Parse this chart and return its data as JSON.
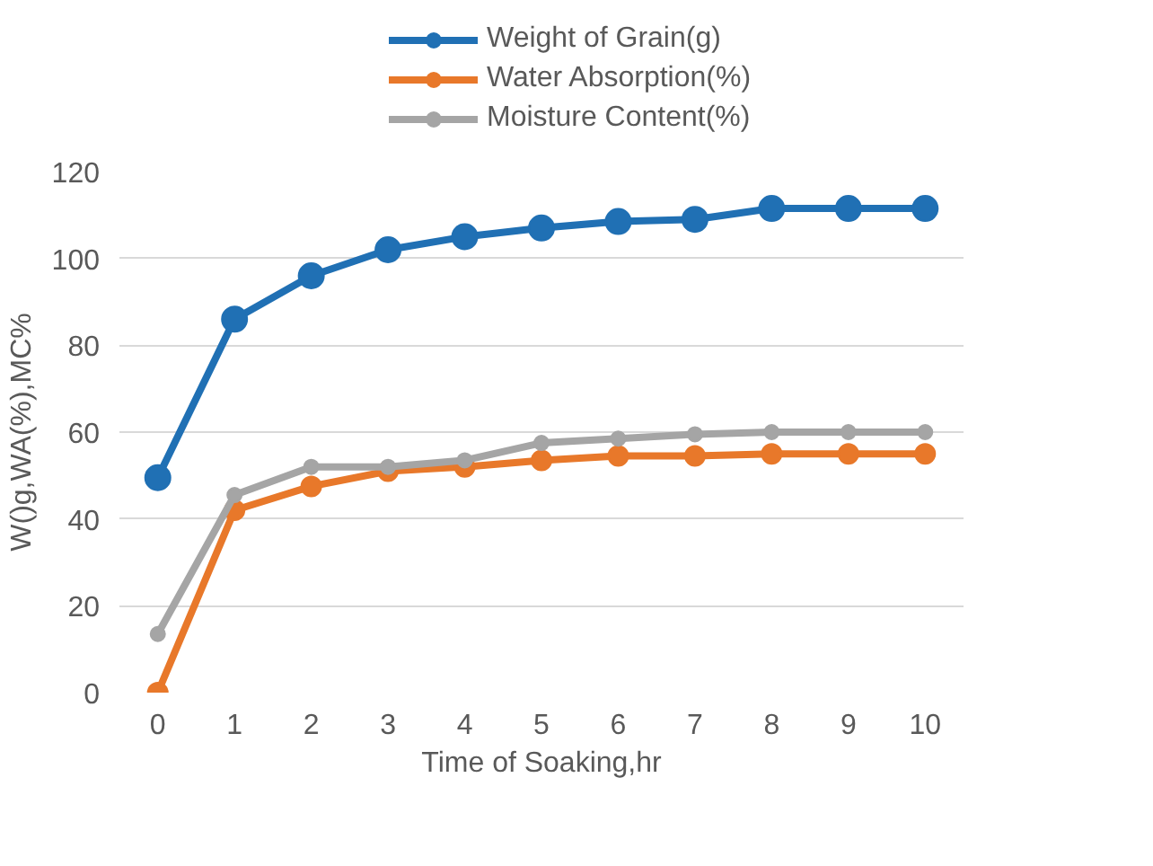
{
  "chart_data": {
    "type": "line",
    "xlabel": "Time of Soaking,hr",
    "ylabel": "W()g,WA(%),MC%",
    "categories": [
      "0",
      "1",
      "2",
      "3",
      "4",
      "5",
      "6",
      "7",
      "8",
      "9",
      "10"
    ],
    "series": [
      {
        "name": "Weight of Grain(g)",
        "color": "#2070b4",
        "values": [
          49.5,
          86,
          96,
          102,
          105,
          107,
          108.5,
          109,
          111.5,
          111.5,
          111.5
        ]
      },
      {
        "name": "Water Absorption(%)",
        "color": "#e8782a",
        "values": [
          0,
          42,
          47.5,
          51,
          52,
          53.5,
          54.5,
          54.5,
          55,
          55,
          55
        ]
      },
      {
        "name": "Moisture Content(%)",
        "color": "#a5a5a5",
        "values": [
          13.5,
          45.5,
          52,
          52,
          53.5,
          57.5,
          58.5,
          59.5,
          60,
          60,
          60
        ]
      }
    ],
    "ylim": [
      0,
      120
    ],
    "yticks": [
      0,
      20,
      40,
      60,
      80,
      100,
      120
    ],
    "grid": "y",
    "legend": "top",
    "marker": "circle",
    "line_style": "solid"
  }
}
